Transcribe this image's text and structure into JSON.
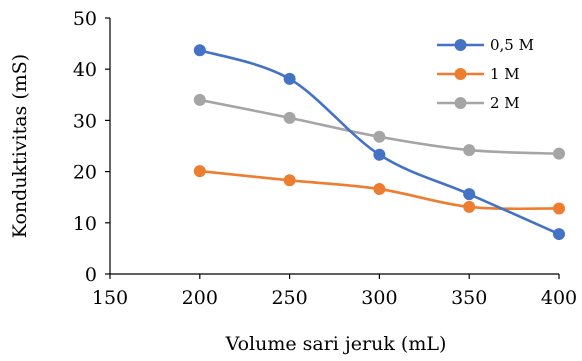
{
  "chart_data": {
    "type": "line",
    "title": "",
    "xlabel": "Volume sari jeruk (mL)",
    "ylabel": "Konduktivitas (mS)",
    "xlim": [
      150,
      400
    ],
    "ylim": [
      0,
      50
    ],
    "xticks": [
      150,
      200,
      250,
      300,
      350,
      400
    ],
    "yticks": [
      0,
      10,
      20,
      30,
      40,
      50
    ],
    "grid": false,
    "legend": "top-right",
    "smooth": true,
    "x": [
      200,
      250,
      300,
      350,
      400
    ],
    "series": [
      {
        "name": "0,5 M",
        "color": "#4472c4",
        "values": [
          43.7,
          38.1,
          23.3,
          15.6,
          7.8
        ]
      },
      {
        "name": "1 M",
        "color": "#ed7d31",
        "values": [
          20.1,
          18.3,
          16.6,
          13.1,
          12.8
        ]
      },
      {
        "name": "2 M",
        "color": "#a5a5a5",
        "values": [
          34.0,
          30.5,
          26.8,
          24.2,
          23.5
        ]
      }
    ]
  }
}
